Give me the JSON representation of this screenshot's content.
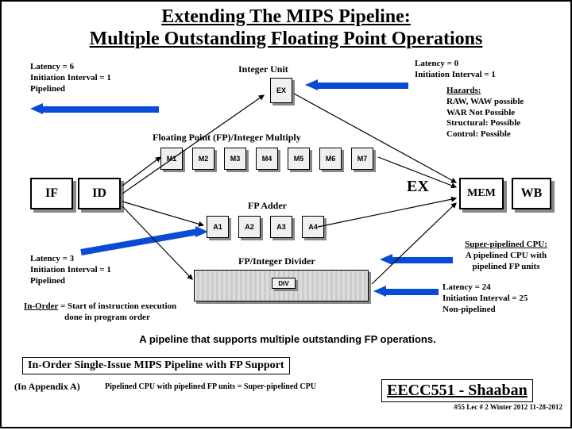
{
  "title_line1": "Extending The MIPS Pipeline:",
  "title_line2": "Multiple Outstanding Floating Point Operations",
  "int_unit": {
    "label": "Integer Unit",
    "box": "EX",
    "latency": "Latency = 0",
    "interval": "Initiation Interval = 1"
  },
  "left_top": {
    "latency": "Latency = 6",
    "interval": "Initiation Interval = 1",
    "pipelined": "Pipelined"
  },
  "left_mid": {
    "latency": "Latency = 3",
    "interval": "Initiation Interval = 1",
    "pipelined": "Pipelined"
  },
  "hazards": {
    "title": "Hazards:",
    "l1": "RAW, WAW possible",
    "l2": "WAR  Not Possible",
    "l3": "Structural:  Possible",
    "l4": "Control:  Possible"
  },
  "fp_mul": {
    "label": "Floating Point (FP)/Integer Multiply",
    "boxes": [
      "M1",
      "M2",
      "M3",
      "M4",
      "M5",
      "M6",
      "M7"
    ]
  },
  "fp_add": {
    "label": "FP Adder",
    "boxes": [
      "A1",
      "A2",
      "A3",
      "A4"
    ]
  },
  "fp_div": {
    "label": "FP/Integer Divider",
    "box": "DIV"
  },
  "stages": {
    "if": "IF",
    "id": "ID",
    "ex": "EX",
    "mem": "MEM",
    "wb": "WB"
  },
  "super": {
    "t": "Super-pipelined CPU:",
    "l1": "A pipelined CPU with",
    "l2": "pipelined FP units"
  },
  "div_lat": {
    "l1": "Latency = 24",
    "l2": "Initiation Interval = 25",
    "l3": "Non-pipelined"
  },
  "inorder": {
    "u": "In-Order",
    "r": " = Start of instruction execution",
    "r2": "done in program order"
  },
  "caption": "A pipeline that supports multiple outstanding FP operations.",
  "footer": {
    "line": "In-Order Single-Issue MIPS Pipeline with FP Support",
    "appendix": "(In  Appendix A)",
    "super": "Pipelined CPU with pipelined FP units = Super-pipelined CPU"
  },
  "course": "EECC551  -  Shaaban",
  "slide": "#55   Lec # 2    Winter 2012   11-28-2012",
  "colors": {
    "arrow": "#0a4bd6",
    "box_bg": "#f0f0f0",
    "shadow": "#888888"
  }
}
